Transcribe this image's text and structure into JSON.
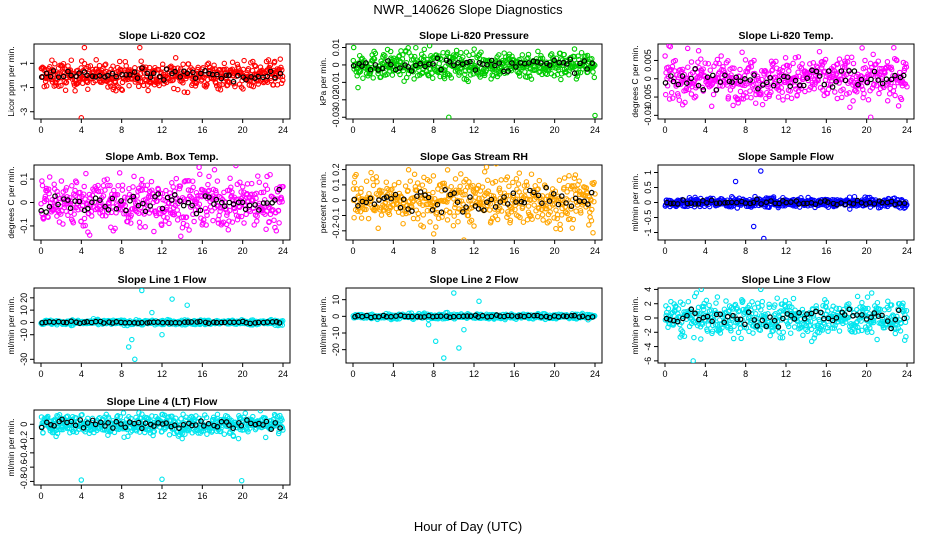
{
  "title": "NWR_140626  Slope Diagnostics",
  "x_axis_label": "Hour of Day (UTC)",
  "chart_data": [
    {
      "type": "scatter",
      "title": "Slope Li-820 CO2",
      "ylabel": "Licor ppm per min.",
      "color": "#ff0000",
      "ylim": [
        -3.6,
        2.6
      ],
      "yticks": [
        -3,
        -1,
        1
      ],
      "xlim": [
        0,
        24
      ],
      "xticks": [
        0,
        4,
        8,
        12,
        16,
        20,
        24
      ],
      "spread": 0.55,
      "outliers": [
        [
          4,
          -3.5
        ],
        [
          4.3,
          2.3
        ],
        [
          9.8,
          2.3
        ]
      ]
    },
    {
      "type": "scatter",
      "title": "Slope Li-820 Pressure",
      "ylabel": "kPa per min.",
      "color": "#00cc00",
      "ylim": [
        -0.031,
        0.012
      ],
      "yticks": [
        -0.03,
        -0.02,
        -0.01,
        0.0,
        0.01
      ],
      "xlim": [
        0,
        24
      ],
      "xticks": [
        0,
        4,
        8,
        12,
        16,
        20,
        24
      ],
      "spread": 0.004,
      "outliers": [
        [
          9.5,
          -0.03
        ],
        [
          24,
          -0.029
        ],
        [
          0.5,
          -0.013
        ],
        [
          7.6,
          0.011
        ]
      ]
    },
    {
      "type": "scatter",
      "title": "Slope Li-820 Temp.",
      "ylabel": "degrees C per min.",
      "color": "#ff00ff",
      "ylim": [
        -0.011,
        0.0095
      ],
      "yticks": [
        -0.01,
        -0.005,
        0.0,
        0.005
      ],
      "xlim": [
        0,
        24
      ],
      "xticks": [
        0,
        4,
        8,
        12,
        16,
        20,
        24
      ],
      "spread": 0.003,
      "outliers": [
        [
          20.4,
          -0.0105
        ],
        [
          0.4,
          0.009
        ]
      ]
    },
    {
      "type": "scatter",
      "title": "Slope Amb. Box Temp.",
      "ylabel": "degrees C per min.",
      "color": "#ff00ff",
      "ylim": [
        -0.16,
        0.16
      ],
      "yticks": [
        -0.1,
        0.0,
        0.1
      ],
      "xlim": [
        0,
        24
      ],
      "xticks": [
        0,
        4,
        8,
        12,
        16,
        20,
        24
      ],
      "spread": 0.055,
      "outliers": []
    },
    {
      "type": "scatter",
      "title": "Slope Gas Stream RH",
      "ylabel": "percent per min.",
      "color": "#ffa500",
      "ylim": [
        -0.26,
        0.23
      ],
      "yticks": [
        -0.2,
        -0.1,
        0.0,
        0.1,
        0.2
      ],
      "xlim": [
        0,
        24
      ],
      "xticks": [
        0,
        4,
        8,
        12,
        16,
        20,
        24
      ],
      "spread": 0.08,
      "outliers": [
        [
          8,
          -0.22
        ],
        [
          11,
          -0.26
        ]
      ]
    },
    {
      "type": "scatter",
      "title": "Slope Sample Flow",
      "ylabel": "ml/min per min.",
      "color": "#0000ff",
      "ylim": [
        -1.25,
        1.25
      ],
      "yticks": [
        -1.0,
        -0.5,
        0.0,
        0.5,
        1.0
      ],
      "xlim": [
        0,
        24
      ],
      "xticks": [
        0,
        4,
        8,
        12,
        16,
        20,
        24
      ],
      "spread": 0.08,
      "outliers": [
        [
          9.8,
          -1.2
        ],
        [
          9.5,
          1.05
        ],
        [
          7,
          0.7
        ],
        [
          8.8,
          -0.8
        ]
      ]
    },
    {
      "type": "scatter",
      "title": "Slope Line 1 Flow",
      "ylabel": "ml/min per min.",
      "color": "#00e5ee",
      "ylim": [
        -33,
        28
      ],
      "yticks": [
        -30,
        -10,
        0,
        10,
        20
      ],
      "xlim": [
        0,
        24
      ],
      "xticks": [
        0,
        4,
        8,
        12,
        16,
        20,
        24
      ],
      "spread": 1.0,
      "outliers": [
        [
          8.7,
          -20
        ],
        [
          9.3,
          -30
        ],
        [
          10,
          26
        ],
        [
          12,
          -10
        ],
        [
          13,
          19
        ],
        [
          14.5,
          14
        ],
        [
          11,
          8
        ],
        [
          9,
          -14
        ]
      ]
    },
    {
      "type": "scatter",
      "title": "Slope Line 2 Flow",
      "ylabel": "ml/min per min.",
      "color": "#00e5ee",
      "ylim": [
        -28,
        17
      ],
      "yticks": [
        -20,
        -10,
        0,
        10
      ],
      "xlim": [
        0,
        24
      ],
      "xticks": [
        0,
        4,
        8,
        12,
        16,
        20,
        24
      ],
      "spread": 0.8,
      "outliers": [
        [
          8.2,
          -15
        ],
        [
          9,
          -25
        ],
        [
          10,
          14
        ],
        [
          11,
          -8
        ],
        [
          12.5,
          9
        ],
        [
          10.5,
          -19
        ],
        [
          7.5,
          -5
        ]
      ]
    },
    {
      "type": "scatter",
      "title": "Slope Line 3 Flow",
      "ylabel": "ml/min per min.",
      "color": "#00e5ee",
      "ylim": [
        -6.3,
        4.2
      ],
      "yticks": [
        -6,
        -4,
        -2,
        0,
        2,
        4
      ],
      "xlim": [
        0,
        24
      ],
      "xticks": [
        0,
        4,
        8,
        12,
        16,
        20,
        24
      ],
      "spread": 1.3,
      "outliers": [
        [
          2.8,
          -6
        ],
        [
          3.6,
          4
        ],
        [
          9.5,
          4
        ],
        [
          20.5,
          3.5
        ]
      ]
    },
    {
      "type": "scatter",
      "title": "Slope Line 4 (LT) Flow",
      "ylabel": "ml/min per min.",
      "color": "#00e5ee",
      "ylim": [
        -0.85,
        0.2
      ],
      "yticks": [
        -0.8,
        -0.6,
        -0.4,
        -0.2,
        0.0
      ],
      "xlim": [
        0,
        24
      ],
      "xticks": [
        0,
        4,
        8,
        12,
        16,
        20,
        24
      ],
      "spread": 0.07,
      "outliers": [
        [
          4,
          -0.78
        ],
        [
          12,
          -0.77
        ],
        [
          19.9,
          -0.79
        ],
        [
          14,
          -0.2
        ],
        [
          1.5,
          -0.17
        ]
      ]
    }
  ]
}
